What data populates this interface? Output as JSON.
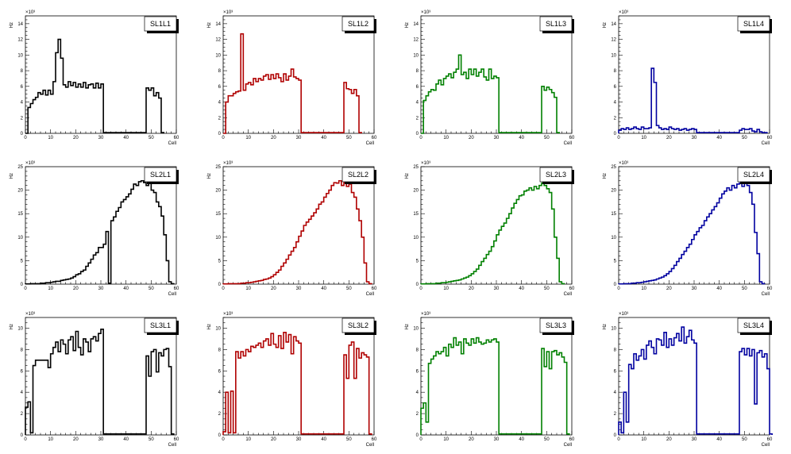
{
  "colors": {
    "black": "#000000",
    "red": "#b00000",
    "green": "#008000",
    "blue": "#0000a0"
  },
  "chart_data": [
    {
      "type": "step",
      "title": "SL1L1",
      "color": "#000000",
      "xlabel": "Cell",
      "ylabel": "Hz",
      "exponent": "×10³",
      "xlim": [
        0,
        60
      ],
      "ylim": [
        0,
        15
      ],
      "xticks": [
        "0",
        "10",
        "20",
        "30",
        "40",
        "50",
        "60"
      ],
      "yticks": [
        "0",
        "2",
        "4",
        "6",
        "8",
        "10",
        "12",
        "14"
      ],
      "values": [
        0,
        3.3,
        3.8,
        4.3,
        4.6,
        5.2,
        5.0,
        5.5,
        4.9,
        5.5,
        5.0,
        6.6,
        10.3,
        12.0,
        9.6,
        6.2,
        5.9,
        6.6,
        6.1,
        6.5,
        5.9,
        6.3,
        5.9,
        6.5,
        5.8,
        6.2,
        6.3,
        5.8,
        6.4,
        5.8,
        6.3,
        0.1,
        0.1,
        0.1,
        0.1,
        0.1,
        0.1,
        0.1,
        0.1,
        0.1,
        0.1,
        0.1,
        0.1,
        0.1,
        0.1,
        0.1,
        0.1,
        0.1,
        5.8,
        5.5,
        5.8,
        4.8,
        5.2,
        4.5,
        0.1
      ]
    },
    {
      "type": "step",
      "title": "SL1L2",
      "color": "#b00000",
      "xlabel": "Cell",
      "ylabel": "Hz",
      "exponent": "×10³",
      "xlim": [
        0,
        60
      ],
      "ylim": [
        0,
        15
      ],
      "xticks": [
        "0",
        "10",
        "20",
        "30",
        "40",
        "50",
        "60"
      ],
      "yticks": [
        "0",
        "2",
        "4",
        "6",
        "8",
        "10",
        "12",
        "14"
      ],
      "values": [
        0,
        4.0,
        4.8,
        4.8,
        5.1,
        5.3,
        5.4,
        12.7,
        5.5,
        6.3,
        6.5,
        6.2,
        7.0,
        6.6,
        7.0,
        6.8,
        7.3,
        7.5,
        6.9,
        7.5,
        7.0,
        7.6,
        7.1,
        6.6,
        7.6,
        6.8,
        7.3,
        8.2,
        7.2,
        7.0,
        6.8,
        0.1,
        0.1,
        0.1,
        0.1,
        0.1,
        0.1,
        0.1,
        0.1,
        0.1,
        0.1,
        0.1,
        0.1,
        0.1,
        0.1,
        0.1,
        0.1,
        0.1,
        6.5,
        5.7,
        5.6,
        5.1,
        5.6,
        4.8,
        0.1
      ]
    },
    {
      "type": "step",
      "title": "SL1L3",
      "color": "#008000",
      "xlabel": "Cell",
      "ylabel": "Hz",
      "exponent": "×10³",
      "xlim": [
        0,
        60
      ],
      "ylim": [
        0,
        15
      ],
      "xticks": [
        "0",
        "10",
        "20",
        "30",
        "40",
        "50",
        "60"
      ],
      "yticks": [
        "0",
        "2",
        "4",
        "6",
        "8",
        "10",
        "12",
        "14"
      ],
      "values": [
        0,
        4.2,
        4.8,
        5.3,
        5.6,
        5.5,
        6.3,
        6.8,
        6.2,
        7.0,
        7.3,
        7.6,
        7.1,
        7.8,
        8.2,
        10.0,
        7.5,
        7.8,
        7.0,
        8.2,
        7.5,
        8.2,
        7.3,
        7.8,
        8.2,
        7.2,
        6.8,
        8.2,
        7.0,
        7.3,
        7.1,
        0.1,
        0.1,
        0.1,
        0.1,
        0.1,
        0.1,
        0.1,
        0.1,
        0.1,
        0.1,
        0.1,
        0.1,
        0.1,
        0.1,
        0.1,
        0.1,
        0.1,
        6.0,
        5.5,
        5.9,
        5.6,
        5.2,
        4.6,
        0.1
      ]
    },
    {
      "type": "step",
      "title": "SL1L4",
      "color": "#0000a0",
      "xlabel": "Cell",
      "ylabel": "Hz",
      "exponent": "×10³",
      "xlim": [
        0,
        60
      ],
      "ylim": [
        0,
        15
      ],
      "xticks": [
        "0",
        "10",
        "20",
        "30",
        "40",
        "50",
        "60"
      ],
      "yticks": [
        "0",
        "2",
        "4",
        "6",
        "8",
        "10",
        "12",
        "14"
      ],
      "values": [
        0.4,
        0.6,
        0.5,
        0.7,
        0.5,
        0.6,
        0.8,
        0.6,
        0.5,
        0.8,
        0.6,
        0.6,
        0.7,
        8.3,
        6.5,
        1.0,
        0.7,
        0.5,
        0.6,
        0.5,
        0.8,
        0.6,
        0.5,
        0.6,
        0.4,
        0.5,
        0.6,
        0.4,
        0.5,
        0.6,
        0.5,
        0.1,
        0.1,
        0.1,
        0.1,
        0.1,
        0.1,
        0.1,
        0.1,
        0.1,
        0.1,
        0.1,
        0.1,
        0.1,
        0.1,
        0.1,
        0.1,
        0.1,
        0.4,
        0.6,
        0.5,
        0.5,
        0.6,
        0.3,
        0.2,
        0.5,
        0.2,
        0.1,
        0.1
      ]
    },
    {
      "type": "step",
      "title": "SL2L1",
      "color": "#000000",
      "xlabel": "Cell",
      "ylabel": "Hz",
      "exponent": "×10³",
      "xlim": [
        0,
        60
      ],
      "ylim": [
        0,
        25
      ],
      "xticks": [
        "0",
        "10",
        "20",
        "30",
        "40",
        "50",
        "60"
      ],
      "yticks": [
        "0",
        "5",
        "10",
        "15",
        "20",
        "25"
      ],
      "values": [
        0.05,
        0.05,
        0.1,
        0.1,
        0.1,
        0.1,
        0.2,
        0.2,
        0.3,
        0.3,
        0.4,
        0.5,
        0.6,
        0.6,
        0.8,
        0.9,
        1.0,
        1.1,
        1.3,
        1.6,
        2.0,
        2.2,
        2.7,
        3.0,
        3.8,
        4.5,
        5.3,
        6.2,
        6.7,
        7.8,
        7.8,
        8.5,
        11.2,
        0.2,
        13.5,
        14.3,
        15.5,
        16.3,
        17.5,
        18.0,
        18.6,
        19.2,
        20.2,
        21.3,
        21.0,
        21.8,
        22.0,
        21.6,
        21.0,
        21.7,
        20.0,
        19.5,
        17.5,
        16.5,
        14.5,
        10.5,
        5.0,
        0.5,
        0.1
      ]
    },
    {
      "type": "step",
      "title": "SL2L2",
      "color": "#b00000",
      "xlabel": "Cell",
      "ylabel": "Hz",
      "exponent": "×10³",
      "xlim": [
        0,
        60
      ],
      "ylim": [
        0,
        25
      ],
      "xticks": [
        "0",
        "10",
        "20",
        "30",
        "40",
        "50",
        "60"
      ],
      "yticks": [
        "0",
        "5",
        "10",
        "15",
        "20",
        "25"
      ],
      "values": [
        0.05,
        0.05,
        0.1,
        0.1,
        0.1,
        0.1,
        0.1,
        0.2,
        0.2,
        0.3,
        0.3,
        0.4,
        0.5,
        0.6,
        0.7,
        0.8,
        1.0,
        1.1,
        1.3,
        1.6,
        2.0,
        2.5,
        3.0,
        3.8,
        4.5,
        5.3,
        6.2,
        7.0,
        7.8,
        9.0,
        10.2,
        11.3,
        12.5,
        13.2,
        13.8,
        14.5,
        15.2,
        16.0,
        17.0,
        17.5,
        18.5,
        19.3,
        20.0,
        21.0,
        21.6,
        21.5,
        22.0,
        21.0,
        21.6,
        20.8,
        21.3,
        19.5,
        18.5,
        16.0,
        13.5,
        10.0,
        4.5,
        0.5,
        0.1
      ]
    },
    {
      "type": "step",
      "title": "SL2L3",
      "color": "#008000",
      "xlabel": "Cell",
      "ylabel": "Hz",
      "exponent": "×10³",
      "xlim": [
        0,
        60
      ],
      "ylim": [
        0,
        25
      ],
      "xticks": [
        "0",
        "10",
        "20",
        "30",
        "40",
        "50",
        "60"
      ],
      "yticks": [
        "0",
        "5",
        "10",
        "15",
        "20",
        "25"
      ],
      "values": [
        0.05,
        0.05,
        0.1,
        0.1,
        0.1,
        0.1,
        0.2,
        0.2,
        0.3,
        0.3,
        0.4,
        0.5,
        0.6,
        0.7,
        0.8,
        0.9,
        1.1,
        1.3,
        1.5,
        1.8,
        2.2,
        2.7,
        3.2,
        4.0,
        4.8,
        5.5,
        6.3,
        7.0,
        8.0,
        9.2,
        10.5,
        11.5,
        12.3,
        13.0,
        14.0,
        15.0,
        16.2,
        17.2,
        18.0,
        18.8,
        19.0,
        19.8,
        20.0,
        20.5,
        20.0,
        20.8,
        20.3,
        21.0,
        21.5,
        21.0,
        20.3,
        19.5,
        16.0,
        10.0,
        5.5,
        0.5,
        0.1
      ]
    },
    {
      "type": "step",
      "title": "SL2L4",
      "color": "#0000a0",
      "xlabel": "Cell",
      "ylabel": "Hz",
      "exponent": "×10³",
      "xlim": [
        0,
        60
      ],
      "ylim": [
        0,
        25
      ],
      "xticks": [
        "0",
        "10",
        "20",
        "30",
        "40",
        "50",
        "60"
      ],
      "yticks": [
        "0",
        "5",
        "10",
        "15",
        "20",
        "25"
      ],
      "values": [
        0.05,
        0.05,
        0.1,
        0.1,
        0.1,
        0.2,
        0.2,
        0.3,
        0.3,
        0.4,
        0.5,
        0.6,
        0.7,
        0.8,
        0.9,
        1.1,
        1.3,
        1.5,
        1.8,
        2.2,
        2.7,
        3.3,
        4.0,
        4.8,
        5.5,
        6.3,
        7.0,
        7.8,
        8.5,
        9.5,
        10.5,
        11.2,
        12.0,
        12.5,
        13.5,
        14.3,
        15.0,
        15.8,
        16.5,
        17.3,
        18.3,
        19.2,
        19.8,
        20.5,
        20.0,
        21.0,
        20.5,
        21.3,
        21.5,
        20.8,
        21.8,
        21.0,
        19.5,
        17.0,
        11.0,
        6.5,
        0.5,
        0.1
      ]
    },
    {
      "type": "step",
      "title": "SL3L1",
      "color": "#000000",
      "xlabel": "Cell",
      "ylabel": "Hz",
      "exponent": "×10³",
      "xlim": [
        0,
        60
      ],
      "ylim": [
        0,
        11
      ],
      "xticks": [
        "0",
        "10",
        "20",
        "30",
        "40",
        "50",
        "60"
      ],
      "yticks": [
        "0",
        "2",
        "4",
        "6",
        "8",
        "10"
      ],
      "values": [
        2.6,
        3.1,
        0.2,
        6.5,
        7.0,
        7.0,
        7.0,
        7.0,
        7.0,
        6.3,
        7.6,
        8.2,
        8.7,
        7.8,
        8.9,
        8.5,
        7.6,
        8.9,
        9.2,
        7.9,
        9.7,
        8.2,
        7.5,
        9.0,
        8.7,
        7.8,
        9.0,
        9.2,
        8.8,
        9.5,
        9.9,
        0.1,
        0.1,
        0.1,
        0.1,
        0.1,
        0.1,
        0.1,
        0.1,
        0.1,
        0.1,
        0.1,
        0.1,
        0.1,
        0.1,
        0.1,
        0.1,
        0.1,
        7.4,
        5.5,
        7.8,
        8.0,
        5.9,
        7.7,
        7.4,
        8.0,
        8.1,
        6.4,
        0.1
      ]
    },
    {
      "type": "step",
      "title": "SL3L2",
      "color": "#b00000",
      "xlabel": "Cell",
      "ylabel": "Hz",
      "exponent": "×10³",
      "xlim": [
        0,
        60
      ],
      "ylim": [
        0,
        11
      ],
      "xticks": [
        "0",
        "10",
        "20",
        "30",
        "40",
        "50",
        "60"
      ],
      "yticks": [
        "0",
        "2",
        "4",
        "6",
        "8",
        "10"
      ],
      "values": [
        0.3,
        4.0,
        0.2,
        4.1,
        0.2,
        7.8,
        7.2,
        7.8,
        7.4,
        8.0,
        7.8,
        8.3,
        8.2,
        8.4,
        8.6,
        8.2,
        8.8,
        9.0,
        8.4,
        9.5,
        8.5,
        8.2,
        9.3,
        8.1,
        9.6,
        8.7,
        9.4,
        7.6,
        9.2,
        8.8,
        8.6,
        0.1,
        0.1,
        0.1,
        0.1,
        0.1,
        0.1,
        0.1,
        0.1,
        0.1,
        0.1,
        0.1,
        0.1,
        0.1,
        0.1,
        0.1,
        0.1,
        0.1,
        7.5,
        5.3,
        8.4,
        8.7,
        5.3,
        8.1,
        7.2,
        7.7,
        7.5,
        7.3,
        0.1
      ]
    },
    {
      "type": "step",
      "title": "SL3L3",
      "color": "#008000",
      "xlabel": "Cell",
      "ylabel": "Hz",
      "exponent": "×10³",
      "xlim": [
        0,
        60
      ],
      "ylim": [
        0,
        11
      ],
      "xticks": [
        "0",
        "10",
        "20",
        "30",
        "40",
        "50",
        "60"
      ],
      "yticks": [
        "0",
        "2",
        "4",
        "6",
        "8",
        "10"
      ],
      "values": [
        2.5,
        3.0,
        1.2,
        6.7,
        7.1,
        7.4,
        7.8,
        7.6,
        7.8,
        8.2,
        7.4,
        8.5,
        8.2,
        9.1,
        8.4,
        8.7,
        7.6,
        9.0,
        8.6,
        8.4,
        9.0,
        8.6,
        9.1,
        8.7,
        8.5,
        8.6,
        8.9,
        8.7,
        8.9,
        9.0,
        8.7,
        0.1,
        0.1,
        0.1,
        0.1,
        0.1,
        0.1,
        0.1,
        0.1,
        0.1,
        0.1,
        0.1,
        0.1,
        0.1,
        0.1,
        0.1,
        0.1,
        0.1,
        8.1,
        6.4,
        7.8,
        6.2,
        7.8,
        7.9,
        7.5,
        7.7,
        7.3,
        6.8,
        0.1
      ]
    },
    {
      "type": "step",
      "title": "SL3L4",
      "color": "#0000a0",
      "xlabel": "Cell",
      "ylabel": "Hz",
      "exponent": "×10³",
      "xlim": [
        0,
        60
      ],
      "ylim": [
        0,
        11
      ],
      "xticks": [
        "0",
        "10",
        "20",
        "30",
        "40",
        "50",
        "60"
      ],
      "yticks": [
        "0",
        "2",
        "4",
        "6",
        "8",
        "10"
      ],
      "values": [
        1.2,
        0.2,
        4.0,
        1.2,
        6.6,
        6.2,
        7.6,
        7.0,
        7.4,
        8.0,
        7.1,
        8.4,
        8.8,
        8.2,
        7.6,
        9.0,
        8.9,
        8.4,
        9.6,
        8.2,
        9.0,
        8.4,
        9.1,
        9.5,
        8.8,
        10.1,
        8.6,
        9.2,
        9.8,
        8.9,
        8.6,
        0.1,
        0.1,
        0.1,
        0.1,
        0.1,
        0.1,
        0.1,
        0.1,
        0.1,
        0.1,
        0.1,
        0.1,
        0.1,
        0.1,
        0.1,
        0.1,
        0.1,
        7.8,
        8.1,
        7.5,
        8.1,
        7.4,
        8.0,
        2.9,
        7.7,
        7.9,
        7.3,
        7.6,
        6.2,
        0.1
      ]
    }
  ]
}
